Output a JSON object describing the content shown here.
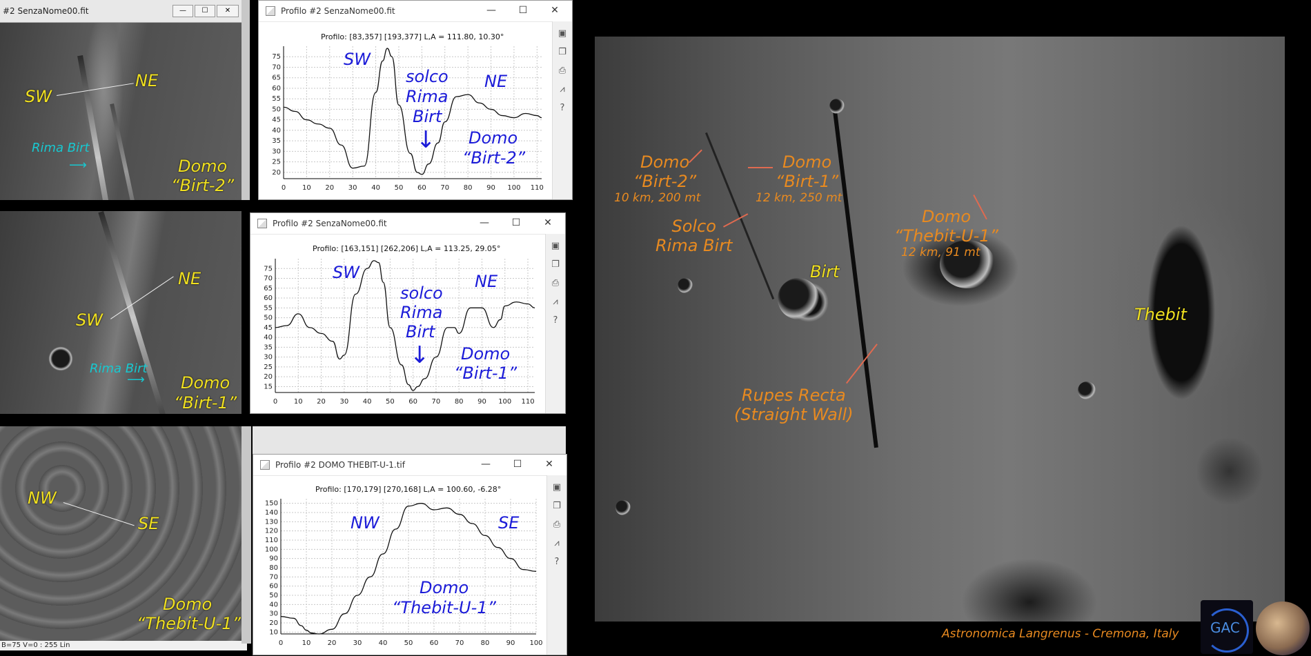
{
  "windows": {
    "image1": {
      "title": "#2 SenzaNome00.fit"
    },
    "profile1": {
      "title": "Profilo #2 SenzaNome00.fit",
      "info": "Profilo: [83,357] [193,377]  L,A = 111.80, 10.30°"
    },
    "profile2": {
      "title": "Profilo #2 SenzaNome00.fit",
      "info": "Profilo: [163,151] [262,206]  L,A = 113.25, 29.05°"
    },
    "profile3": {
      "title": "Profilo #2 DOMO THEBIT-U-1.tif",
      "info": "Profilo: [170,179] [270,168]  L,A = 100.60, -6.28°"
    }
  },
  "controls": {
    "minimize": "—",
    "maximize": "☐",
    "close": "✕"
  },
  "side_icons": [
    "save-icon",
    "copy-icon",
    "print-icon",
    "chart-icon",
    "help-icon"
  ],
  "status_bar": "B=75  V=0 : 255 Lin",
  "crop1": {
    "sw": "SW",
    "ne": "NE",
    "rima": "Rima Birt",
    "domo": "Domo",
    "name": "“Birt-2”"
  },
  "crop2": {
    "sw": "SW",
    "ne": "NE",
    "rima": "Rima Birt",
    "domo": "Domo",
    "name": "“Birt-1”"
  },
  "crop3": {
    "nw": "NW",
    "se": "SE",
    "domo": "Domo",
    "name": "“Thebit-U-1”"
  },
  "plot1_labels": {
    "sw": "SW",
    "solco": "solco",
    "rima": "Rima",
    "birt": "Birt",
    "ne": "NE",
    "domo": "Domo",
    "name": "“Birt-2”"
  },
  "plot2_labels": {
    "sw": "SW",
    "solco": "solco",
    "rima": "Rima",
    "birt": "Birt",
    "ne": "NE",
    "domo": "Domo",
    "name": "“Birt-1”"
  },
  "plot3_labels": {
    "nw": "NW",
    "se": "SE",
    "domo": "Domo",
    "name": "“Thebit-U-1”"
  },
  "moon": {
    "domo_birt2": {
      "a": "Domo",
      "b": "“Birt-2”",
      "c": "10 km, 200 mt"
    },
    "domo_birt1": {
      "a": "Domo",
      "b": "“Birt-1”",
      "c": "12 km, 250 mt"
    },
    "solco": {
      "a": "Solco",
      "b": "Rima Birt"
    },
    "domo_thebit": {
      "a": "Domo",
      "b": "“Thebit-U-1”",
      "c": "12 km, 91 mt"
    },
    "birt": "Birt",
    "thebit": "Thebit",
    "rupes": {
      "a": "Rupes Recta",
      "b": "(Straight Wall)"
    },
    "credit": "Astronomica Langrenus - Cremona, Italy"
  },
  "logo_text": "GAC",
  "chart_data": [
    {
      "type": "line",
      "x": [
        0,
        5,
        10,
        15,
        20,
        25,
        30,
        35,
        40,
        43,
        45,
        47,
        50,
        55,
        58,
        60,
        63,
        67,
        70,
        75,
        80,
        85,
        90,
        95,
        100,
        105,
        110,
        112
      ],
      "y": [
        51,
        49,
        45,
        43,
        41,
        33,
        22,
        23,
        58,
        73,
        79,
        75,
        52,
        29,
        20,
        19,
        24,
        34,
        44,
        56,
        57,
        53,
        50,
        47,
        46,
        48,
        47,
        46
      ],
      "xticks": [
        0,
        10,
        20,
        30,
        40,
        50,
        60,
        70,
        80,
        90,
        100,
        110
      ],
      "yticks": [
        20,
        25,
        30,
        35,
        40,
        45,
        50,
        55,
        60,
        65,
        70,
        75
      ],
      "xlim": [
        0,
        112
      ],
      "ylim": [
        17,
        80
      ],
      "grid": true
    },
    {
      "type": "line",
      "x": [
        0,
        5,
        10,
        15,
        20,
        25,
        28,
        30,
        35,
        40,
        43,
        45,
        47,
        50,
        55,
        58,
        60,
        62,
        65,
        70,
        75,
        78,
        80,
        85,
        90,
        95,
        98,
        100,
        105,
        110,
        113
      ],
      "y": [
        45,
        46,
        52,
        45,
        42,
        38,
        29,
        31,
        62,
        75,
        79,
        78,
        68,
        45,
        26,
        16,
        13,
        15,
        19,
        30,
        45,
        45,
        42,
        55,
        55,
        45,
        49,
        56,
        58,
        57,
        55
      ],
      "xticks": [
        0,
        10,
        20,
        30,
        40,
        50,
        60,
        70,
        80,
        90,
        100,
        110
      ],
      "yticks": [
        15,
        20,
        25,
        30,
        35,
        40,
        45,
        50,
        55,
        60,
        65,
        70,
        75
      ],
      "xlim": [
        0,
        113
      ],
      "ylim": [
        12,
        80
      ],
      "grid": true
    },
    {
      "type": "line",
      "x": [
        0,
        5,
        8,
        10,
        12,
        15,
        20,
        25,
        30,
        35,
        40,
        45,
        50,
        55,
        60,
        65,
        70,
        75,
        80,
        85,
        90,
        95,
        100
      ],
      "y": [
        27,
        25,
        17,
        12,
        9,
        8,
        13,
        30,
        50,
        70,
        95,
        122,
        147,
        150,
        143,
        145,
        138,
        128,
        115,
        102,
        90,
        78,
        76
      ],
      "xticks": [
        0,
        10,
        20,
        30,
        40,
        50,
        60,
        70,
        80,
        90,
        100
      ],
      "yticks": [
        10,
        20,
        30,
        40,
        50,
        60,
        70,
        80,
        90,
        100,
        110,
        120,
        130,
        140,
        150
      ],
      "xlim": [
        0,
        100
      ],
      "ylim": [
        8,
        155
      ],
      "grid": true
    }
  ]
}
